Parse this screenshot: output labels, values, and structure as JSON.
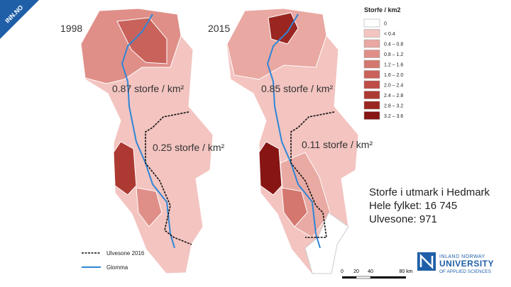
{
  "badge": "INN.NO",
  "maps": [
    {
      "year": "1998",
      "total_label": "0.87 storfe / km²",
      "zone_label": "0.25 storfe / km²"
    },
    {
      "year": "2015",
      "total_label": "0.85 storfe / km²",
      "zone_label": "0.11 storfe / km²"
    }
  ],
  "legend": {
    "title": "Storfe / km2",
    "items": [
      {
        "label": "0",
        "color": "#ffffff"
      },
      {
        "label": "< 0.4",
        "color": "#f3c4c0"
      },
      {
        "label": "0.4 – 0.8",
        "color": "#e9a8a2"
      },
      {
        "label": "0.8 – 1.2",
        "color": "#df8f88"
      },
      {
        "label": "1.2 – 1.6",
        "color": "#d4776f"
      },
      {
        "label": "1.6 – 2.0",
        "color": "#c9625a"
      },
      {
        "label": "2.0 – 2.4",
        "color": "#bd4d45"
      },
      {
        "label": "2.4 – 2.8",
        "color": "#ad3a32"
      },
      {
        "label": "2.8 – 3.2",
        "color": "#9a2621"
      },
      {
        "label": "3.2 – 3.6",
        "color": "#861513"
      }
    ]
  },
  "line_legend": {
    "zone": "Ulvesone 2016",
    "river": "Glomma"
  },
  "scale": [
    "0",
    "20",
    "40",
    "80 km"
  ],
  "info": [
    "Storfe i utmark i Hedmark",
    "Hele fylket: 16 745",
    "Ulvesone: 971"
  ],
  "logo": [
    "INLAND NORWAY",
    "UNIVERSITY",
    "OF APPLIED SCIENCES"
  ]
}
